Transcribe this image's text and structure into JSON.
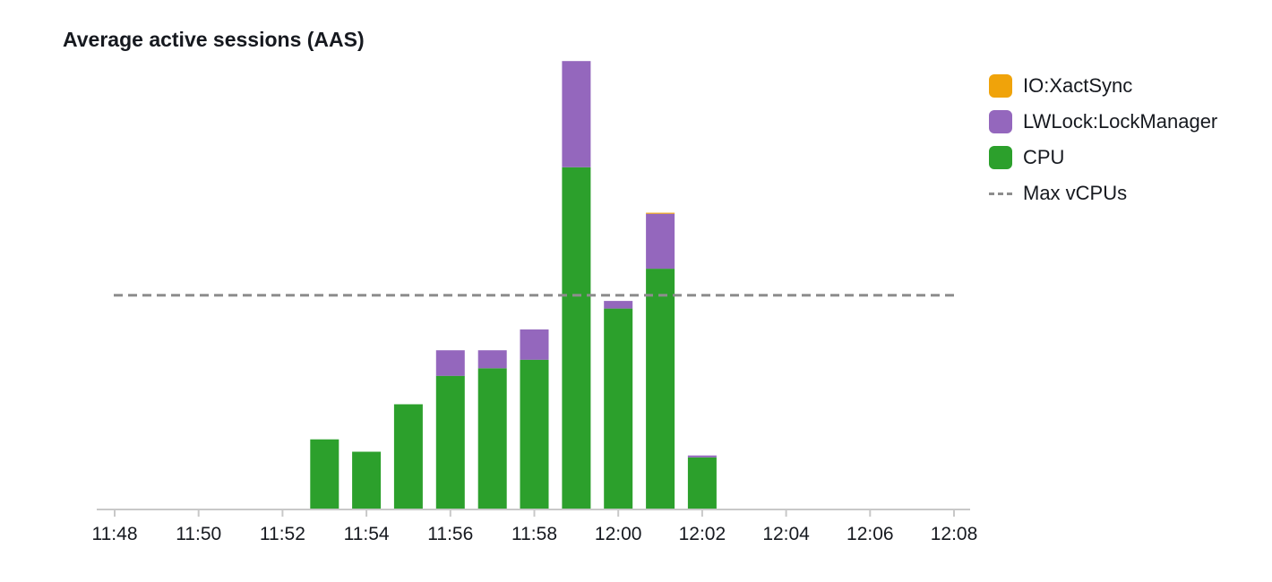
{
  "chart_data": {
    "type": "bar",
    "stacked": true,
    "title": "Average active sessions (AAS)",
    "xlabel": "",
    "ylabel": "",
    "x_tick_labels": [
      "11:48",
      "11:50",
      "11:52",
      "11:54",
      "11:56",
      "11:58",
      "12:00",
      "12:02",
      "12:04",
      "12:06",
      "12:08"
    ],
    "categories": [
      "11:53",
      "11:54",
      "11:55",
      "11:56",
      "11:57",
      "11:58",
      "11:59",
      "12:00",
      "12:01",
      "12:02"
    ],
    "series": [
      {
        "name": "CPU",
        "color": "#2ca02c",
        "values": [
          0.73,
          0.6,
          1.1,
          1.4,
          1.48,
          1.57,
          3.6,
          2.11,
          2.53,
          0.54
        ]
      },
      {
        "name": "LWLock:LockManager",
        "color": "#9467bd",
        "values": [
          0.0,
          0.0,
          0.0,
          0.27,
          0.19,
          0.32,
          1.12,
          0.08,
          0.58,
          0.02
        ]
      },
      {
        "name": "IO:XactSync",
        "color": "#f0a30a",
        "values": [
          0.0,
          0.0,
          0.0,
          0.0,
          0.0,
          0.0,
          0.0,
          0.0,
          0.01,
          0.0
        ]
      }
    ],
    "reference_line": {
      "name": "Max vCPUs",
      "value": 2.25,
      "style": "dashed",
      "color": "#8d8d8d"
    },
    "ylim": [
      0,
      4.75
    ],
    "y_axis_visible": false,
    "grid": false,
    "legend_position": "right"
  }
}
